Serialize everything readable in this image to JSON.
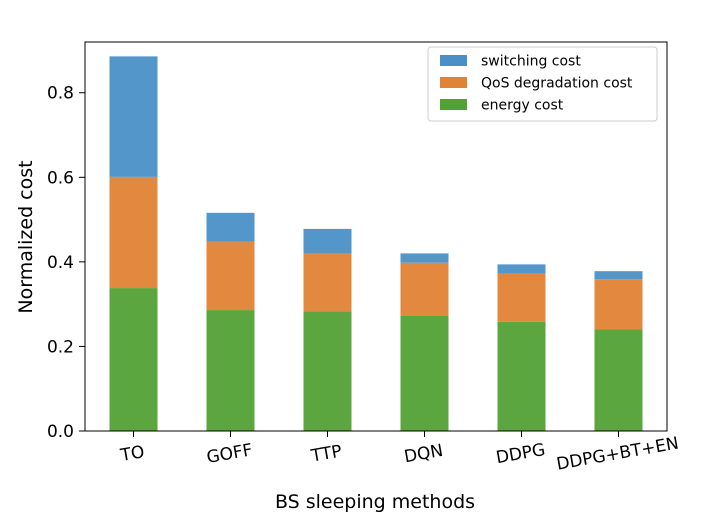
{
  "chart_data": {
    "type": "bar",
    "stacked": true,
    "categories": [
      "TO",
      "GOFF",
      "TTP",
      "DQN",
      "DDPG",
      "DDPG+BT+EN"
    ],
    "series": [
      {
        "name": "energy cost",
        "values": [
          0.338,
          0.286,
          0.283,
          0.272,
          0.258,
          0.24
        ],
        "color": "#52a134"
      },
      {
        "name": "QoS degradation cost",
        "values": [
          0.263,
          0.162,
          0.137,
          0.126,
          0.114,
          0.119
        ],
        "color": "#e08335"
      },
      {
        "name": "switching cost",
        "values": [
          0.285,
          0.068,
          0.058,
          0.022,
          0.022,
          0.019
        ],
        "color": "#4a90c6"
      }
    ],
    "legend_order": [
      "switching cost",
      "QoS degradation cost",
      "energy cost"
    ],
    "legend_placement": "top-right",
    "xlabel": "BS sleeping methods",
    "ylabel": "Normalized cost",
    "ylim": [
      0,
      0.92
    ],
    "yticks": [
      "0.0",
      "0.2",
      "0.4",
      "0.6",
      "0.8"
    ],
    "grid": false
  }
}
